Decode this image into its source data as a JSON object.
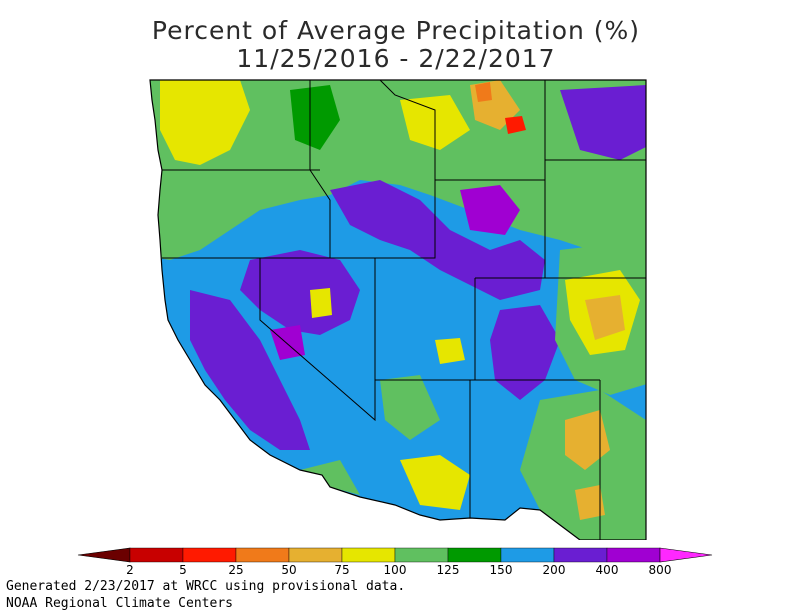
{
  "title": {
    "line1": "Percent of Average Precipitation (%)",
    "line2": "11/25/2016 - 2/22/2017"
  },
  "legend": {
    "tick_labels": [
      "2",
      "5",
      "25",
      "50",
      "75",
      "100",
      "125",
      "150",
      "200",
      "400",
      "800"
    ],
    "colors": [
      "#6b0000",
      "#c80000",
      "#ff1a00",
      "#f07a1a",
      "#e6b030",
      "#e6e600",
      "#60c060",
      "#009a00",
      "#1e9be6",
      "#6a1ed2",
      "#a000d2",
      "#ff28ff"
    ]
  },
  "footer": {
    "line1": "Generated 2/23/2017 at WRCC using provisional data.",
    "line2": "NOAA Regional Climate Centers"
  },
  "map_colors": {
    "ocean": "#ffffff",
    "blue": "#1e9be6",
    "purple": "#6a1ed2",
    "violet": "#a000d2",
    "green": "#60c060",
    "dark_green": "#009a00",
    "yellow": "#e6e600",
    "gold": "#e6b030",
    "orange": "#f07a1a",
    "red": "#ff1a00",
    "border": "#000000"
  }
}
